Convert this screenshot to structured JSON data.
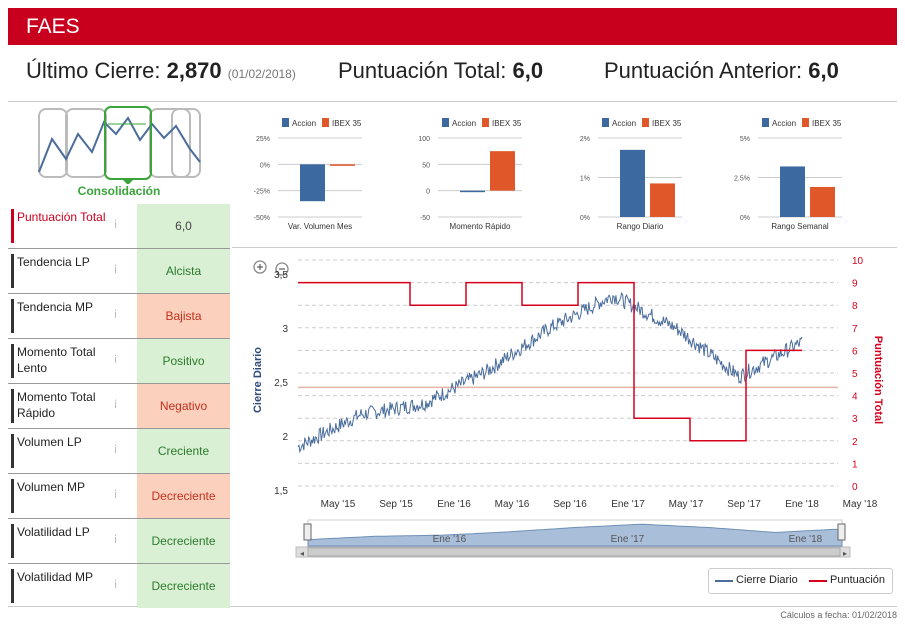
{
  "header": {
    "title": "FAES"
  },
  "summary": {
    "last_close_label": "Último Cierre:",
    "last_close_value": "2,870",
    "last_close_date": "(01/02/2018)",
    "total_score_label": "Puntuación Total:",
    "total_score_value": "6,0",
    "prev_score_label": "Puntuación Anterior:",
    "prev_score_value": "6,0"
  },
  "pattern": {
    "label": "Consolidación"
  },
  "indicators": [
    {
      "name": "Puntuación Total",
      "value": "6,0",
      "status": "neutral"
    },
    {
      "name": "Tendencia LP",
      "value": "Alcista",
      "status": "positive"
    },
    {
      "name": "Tendencia MP",
      "value": "Bajista",
      "status": "negative"
    },
    {
      "name": "Momento Total Lento",
      "value": "Positivo",
      "status": "positive"
    },
    {
      "name": "Momento Total Rápido",
      "value": "Negativo",
      "status": "negative"
    },
    {
      "name": "Volumen LP",
      "value": "Creciente",
      "status": "positive"
    },
    {
      "name": "Volumen MP",
      "value": "Decreciente",
      "status": "negative"
    },
    {
      "name": "Volatilidad LP",
      "value": "Decreciente",
      "status": "positive"
    },
    {
      "name": "Volatilidad MP",
      "value": "Decreciente",
      "status": "positive"
    }
  ],
  "mini_charts": [
    {
      "title": "Var. Volumen Mes",
      "legend": [
        "Accion",
        "IBEX 35"
      ],
      "yticks": [
        "25%",
        "0%",
        "-25%",
        "-50%"
      ],
      "ymin": -50,
      "ymax": 25,
      "values": [
        -35,
        0
      ]
    },
    {
      "title": "Momento Rápido",
      "legend": [
        "Accion",
        "IBEX 35"
      ],
      "yticks": [
        "100",
        "50",
        "0",
        "-50"
      ],
      "ymin": -50,
      "ymax": 100,
      "values": [
        -2,
        75
      ]
    },
    {
      "title": "Rango Diario",
      "legend": [
        "Accion",
        "IBEX 35"
      ],
      "yticks": [
        "2%",
        "1%",
        "0%"
      ],
      "ymin": 0,
      "ymax": 2,
      "values": [
        1.7,
        0.85
      ]
    },
    {
      "title": "Rango Semanal",
      "legend": [
        "Accion",
        "IBEX 35"
      ],
      "yticks": [
        "5%",
        "2.5%",
        "0%"
      ],
      "ymin": 0,
      "ymax": 5,
      "values": [
        3.2,
        1.9
      ]
    }
  ],
  "main_chart": {
    "left_axis_label": "Cierre Diario",
    "right_axis_label": "Puntuación Total",
    "left_ticks": [
      "3,5",
      "3",
      "2,5",
      "2",
      "1,5"
    ],
    "right_ticks": [
      "10",
      "9",
      "8",
      "7",
      "6",
      "5",
      "4",
      "3",
      "2",
      "1",
      "0"
    ],
    "x_ticks": [
      "May '15",
      "Sep '15",
      "Ene '16",
      "May '16",
      "Sep '16",
      "Ene '17",
      "May '17",
      "Sep '17",
      "Ene '18",
      "May '18"
    ],
    "navigator_ticks": [
      "Ene '16",
      "Ene '17",
      "Ene '18"
    ],
    "legend_close": "Cierre Diario",
    "legend_score": "Puntuación",
    "reference_level": 2.45
  },
  "chart_data": {
    "type": "line",
    "title": "",
    "xlabel": "",
    "ylabel": "Cierre Diario",
    "ylim": [
      1.5,
      3.5
    ],
    "y2label": "Puntuación Total",
    "y2lim": [
      0,
      10
    ],
    "categories": [
      "May '15",
      "Sep '15",
      "Ene '16",
      "May '16",
      "Sep '16",
      "Ene '17",
      "May '17",
      "Sep '17",
      "Ene '18"
    ],
    "series": [
      {
        "name": "Cierre Diario",
        "values": [
          1.9,
          2.2,
          2.3,
          2.6,
          3.0,
          3.3,
          3.0,
          2.55,
          2.87
        ]
      },
      {
        "name": "Puntuación",
        "values": [
          9,
          9,
          8,
          9,
          8,
          9,
          3,
          2,
          6
        ]
      }
    ]
  },
  "footer": {
    "calc_date": "Cálculos a fecha: 01/02/2018"
  },
  "colors": {
    "brand": "#c8001e",
    "accion": "#3c6aa0",
    "ibex": "#e0572a",
    "close_line": "#4a6d9c",
    "score_line": "#d6001c"
  }
}
